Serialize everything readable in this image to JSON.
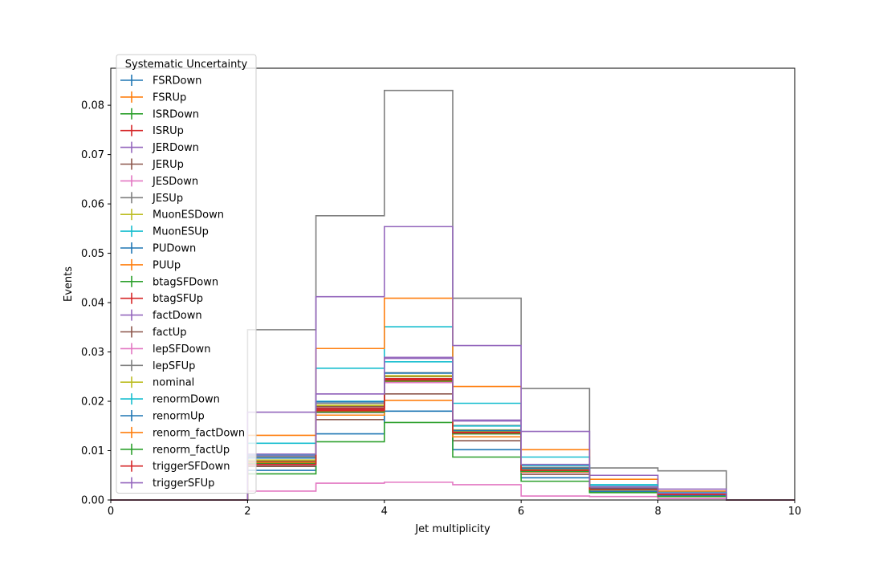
{
  "chart_data": {
    "type": "histogram-step",
    "xlabel": "Jet multiplicity",
    "ylabel": "Events",
    "xlim": [
      0,
      10
    ],
    "ylim": [
      0,
      0.0875
    ],
    "x_ticks": [
      0,
      2,
      4,
      6,
      8,
      10
    ],
    "y_ticks": [
      0.0,
      0.01,
      0.02,
      0.03,
      0.04,
      0.05,
      0.06,
      0.07,
      0.08
    ],
    "x_tick_labels": [
      "0",
      "2",
      "4",
      "6",
      "8",
      "10"
    ],
    "y_tick_labels": [
      "0.00",
      "0.01",
      "0.02",
      "0.03",
      "0.04",
      "0.05",
      "0.06",
      "0.07",
      "0.08"
    ],
    "grid": false,
    "bin_edges": [
      0,
      2,
      3,
      4,
      5,
      6,
      7,
      8,
      9,
      10
    ],
    "legend": {
      "title": "Systematic Uncertainty",
      "placement": "upper-left"
    },
    "series": [
      {
        "name": "FSRDown",
        "color": "#1f77b4",
        "values": [
          0,
          0.0072,
          0.0185,
          0.0245,
          0.0138,
          0.0058,
          0.0022,
          0.0012,
          0
        ]
      },
      {
        "name": "FSRUp",
        "color": "#ff7f0e",
        "values": [
          0,
          0.0075,
          0.018,
          0.024,
          0.0135,
          0.006,
          0.0022,
          0.0012,
          0
        ]
      },
      {
        "name": "ISRDown",
        "color": "#2ca02c",
        "values": [
          0,
          0.007,
          0.0182,
          0.0242,
          0.014,
          0.0058,
          0.002,
          0.001,
          0
        ]
      },
      {
        "name": "ISRUp",
        "color": "#d62728",
        "values": [
          0,
          0.0073,
          0.0186,
          0.0246,
          0.0137,
          0.0059,
          0.0021,
          0.0011,
          0
        ]
      },
      {
        "name": "JERDown",
        "color": "#9467bd",
        "values": [
          0,
          0.009,
          0.0215,
          0.0287,
          0.0162,
          0.007,
          0.0025,
          0.0013,
          0
        ]
      },
      {
        "name": "JERUp",
        "color": "#8c564b",
        "values": [
          0,
          0.0068,
          0.0163,
          0.0215,
          0.012,
          0.0052,
          0.002,
          0.001,
          0
        ]
      },
      {
        "name": "JESDown",
        "color": "#e377c2",
        "values": [
          0,
          0.0018,
          0.0034,
          0.0036,
          0.0031,
          0.0008,
          0.0007,
          0.0003,
          0
        ]
      },
      {
        "name": "JESUp",
        "color": "#7f7f7f",
        "values": [
          0,
          0.0345,
          0.0576,
          0.083,
          0.0409,
          0.0226,
          0.0065,
          0.0059,
          0
        ]
      },
      {
        "name": "MuonESDown",
        "color": "#bcbd22",
        "values": [
          0,
          0.008,
          0.019,
          0.025,
          0.014,
          0.0062,
          0.0022,
          0.0012,
          0
        ]
      },
      {
        "name": "MuonESUp",
        "color": "#17becf",
        "values": [
          0,
          0.0115,
          0.0267,
          0.0351,
          0.0196,
          0.0087,
          0.0031,
          0.0016,
          0
        ]
      },
      {
        "name": "PUDown",
        "color": "#1f77b4",
        "values": [
          0,
          0.006,
          0.0134,
          0.018,
          0.0102,
          0.0045,
          0.0017,
          0.0009,
          0
        ]
      },
      {
        "name": "PUUp",
        "color": "#ff7f0e",
        "values": [
          0,
          0.0131,
          0.0307,
          0.0409,
          0.023,
          0.0102,
          0.0042,
          0.0018,
          0
        ]
      },
      {
        "name": "btagSFDown",
        "color": "#2ca02c",
        "values": [
          0,
          0.0053,
          0.0118,
          0.0157,
          0.0087,
          0.0038,
          0.0015,
          0.0007,
          0
        ]
      },
      {
        "name": "btagSFUp",
        "color": "#d62728",
        "values": [
          0,
          0.0078,
          0.0183,
          0.0244,
          0.0137,
          0.0061,
          0.0021,
          0.0011,
          0
        ]
      },
      {
        "name": "factDown",
        "color": "#9467bd",
        "values": [
          0,
          0.0178,
          0.0412,
          0.0554,
          0.0313,
          0.0139,
          0.005,
          0.0022,
          0
        ]
      },
      {
        "name": "factUp",
        "color": "#8c564b",
        "values": [
          0,
          0.0079,
          0.0189,
          0.0251,
          0.0141,
          0.0062,
          0.0023,
          0.0012,
          0
        ]
      },
      {
        "name": "lepSFDown",
        "color": "#e377c2",
        "values": [
          0,
          0.0071,
          0.0177,
          0.0238,
          0.0134,
          0.0056,
          0.0021,
          0.0011,
          0
        ]
      },
      {
        "name": "lepSFUp",
        "color": "#7f7f7f",
        "values": [
          0,
          0.0088,
          0.0196,
          0.0258,
          0.0151,
          0.0066,
          0.0024,
          0.0013,
          0
        ]
      },
      {
        "name": "nominal",
        "color": "#bcbd22",
        "values": [
          0,
          0.0081,
          0.0192,
          0.0252,
          0.0142,
          0.0063,
          0.0023,
          0.0012,
          0
        ]
      },
      {
        "name": "renormDown",
        "color": "#17becf",
        "values": [
          0,
          0.0092,
          0.02,
          0.028,
          0.015,
          0.007,
          0.003,
          0.0015,
          0
        ]
      },
      {
        "name": "renormUp",
        "color": "#1f77b4",
        "values": [
          0,
          0.0085,
          0.0199,
          0.0257,
          0.0141,
          0.0064,
          0.0023,
          0.0012,
          0
        ]
      },
      {
        "name": "renorm_factDown",
        "color": "#ff7f0e",
        "values": [
          0,
          0.0076,
          0.0172,
          0.0202,
          0.0128,
          0.0057,
          0.0021,
          0.0011,
          0
        ]
      },
      {
        "name": "renorm_factUp",
        "color": "#2ca02c",
        "values": [
          0,
          0.0074,
          0.0178,
          0.0241,
          0.0134,
          0.0058,
          0.0021,
          0.0011,
          0
        ]
      },
      {
        "name": "triggerSFDown",
        "color": "#d62728",
        "values": [
          0,
          0.0072,
          0.0181,
          0.0243,
          0.0136,
          0.006,
          0.0022,
          0.0011,
          0
        ]
      },
      {
        "name": "triggerSFUp",
        "color": "#9467bd",
        "values": [
          0,
          0.0093,
          0.0215,
          0.0289,
          0.016,
          0.0072,
          0.0027,
          0.0014,
          0
        ]
      }
    ]
  }
}
